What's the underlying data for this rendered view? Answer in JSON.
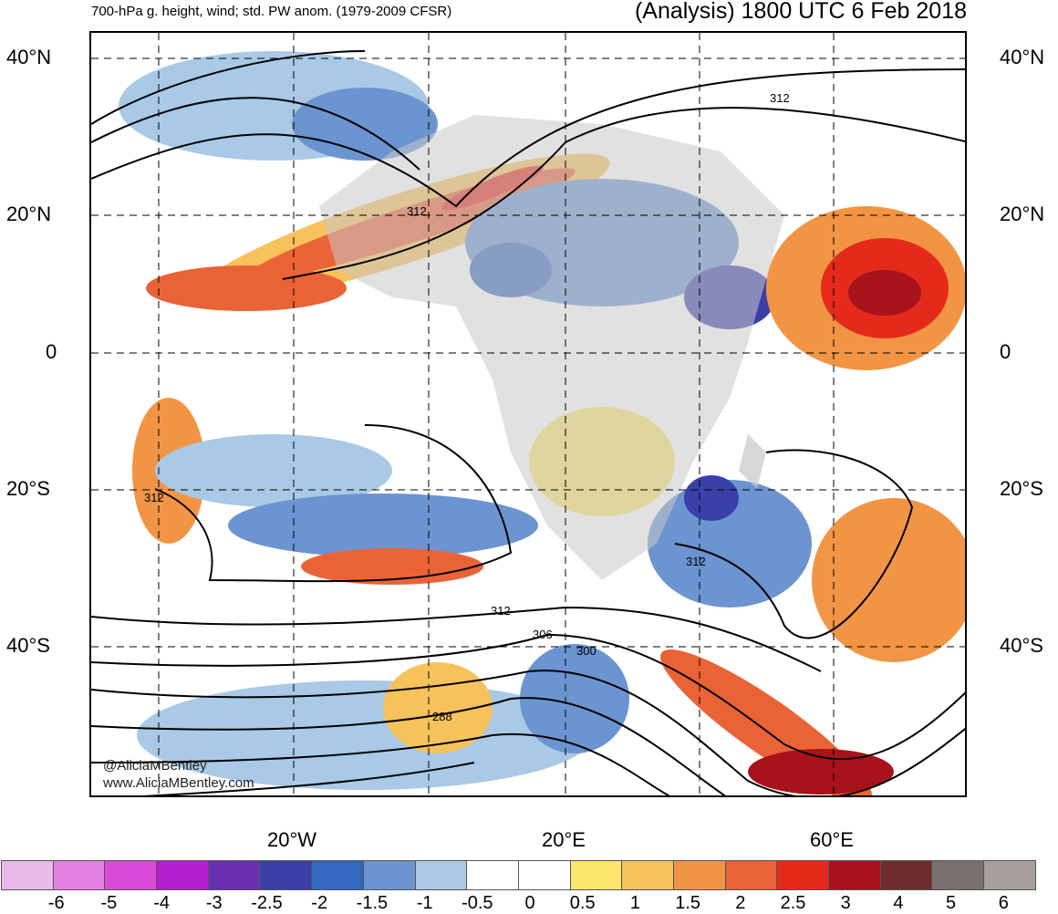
{
  "title": {
    "left": "700-hPa g. height, wind; std. PW anom. (1979-2009 CFSR)",
    "right": "(Analysis) 1800 UTC 6 Feb 2018"
  },
  "lat_labels": [
    "40°N",
    "20°N",
    "0",
    "20°S",
    "40°S"
  ],
  "lon_labels": [
    "20°W",
    "20°E",
    "60°E"
  ],
  "contour_labels": [
    "312",
    "312",
    "312",
    "312",
    "312",
    "306",
    "300",
    "288"
  ],
  "credits": {
    "twitter": "@AliciaMBentley",
    "website": "www.AliciaMBentley.com"
  },
  "colorbar": {
    "ticks": [
      "-6",
      "-5",
      "-4",
      "-3",
      "-2.5",
      "-2",
      "-1.5",
      "-1",
      "-0.5",
      "0",
      "0.5",
      "1",
      "1.5",
      "2",
      "2.5",
      "3",
      "4",
      "5",
      "6"
    ],
    "colors": [
      "#e9b9e9",
      "#e47fe4",
      "#d94ad9",
      "#b31fcf",
      "#6a2fb0",
      "#3b3fa8",
      "#3568bf",
      "#6b94d0",
      "#a9c9e6",
      "#ffffff",
      "#ffffff",
      "#fbe56a",
      "#f6c25b",
      "#f19545",
      "#ea6336",
      "#e52a1c",
      "#a8121a",
      "#6e2b2b",
      "#7a6e6e",
      "#a89e9e"
    ]
  }
}
